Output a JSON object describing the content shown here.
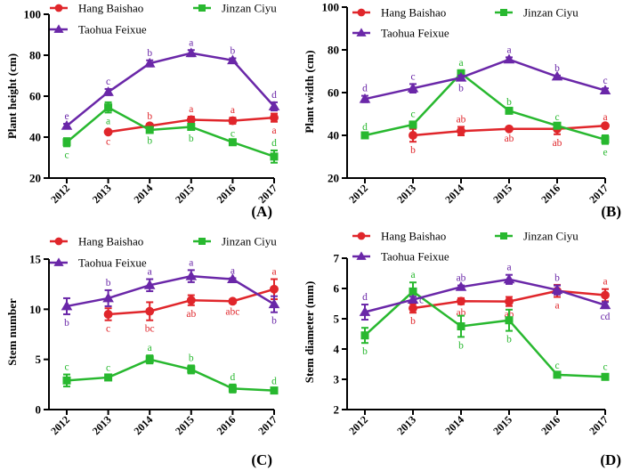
{
  "series_styles": [
    {
      "name": "Hang Baishao",
      "color": "#e0262b",
      "marker": "circle"
    },
    {
      "name": "Jinzan Ciyu",
      "color": "#28b82f",
      "marker": "square"
    },
    {
      "name": "Taohua Feixue",
      "color": "#6a27a8",
      "marker": "triangle"
    }
  ],
  "chart_data": [
    {
      "type": "line",
      "panel": "(A)",
      "ylabel": "Plant height (cm)",
      "categories": [
        "2012",
        "2013",
        "2014",
        "2015",
        "2016",
        "2017"
      ],
      "ylim": [
        20,
        100
      ],
      "yticks": [
        20,
        40,
        60,
        80,
        100
      ],
      "series": [
        {
          "name": "Hang Baishao",
          "x": [
            "2013",
            "2014",
            "2015",
            "2016",
            "2017"
          ],
          "values": [
            42.5,
            45.5,
            48.5,
            48.0,
            49.5
          ],
          "errors": [
            0.5,
            1,
            1.5,
            1.5,
            2
          ],
          "letters": [
            "c",
            "b",
            "a",
            "a",
            "a"
          ],
          "letter_pos": [
            "below",
            "above",
            "above",
            "above",
            "below"
          ]
        },
        {
          "name": "Jinzan Ciyu",
          "x": [
            "2012",
            "2013",
            "2014",
            "2015",
            "2016",
            "2017"
          ],
          "values": [
            37.5,
            54.5,
            43.5,
            45.0,
            37.5,
            30.5
          ],
          "errors": [
            2,
            2.5,
            1,
            1.5,
            0.5,
            3
          ],
          "letters": [
            "c",
            "a",
            "b",
            "b",
            "c",
            "d"
          ],
          "letter_pos": [
            "below",
            "below",
            "below",
            "below",
            "above",
            "above"
          ]
        },
        {
          "name": "Taohua Feixue",
          "x": [
            "2012",
            "2013",
            "2014",
            "2015",
            "2016",
            "2017"
          ],
          "values": [
            45.5,
            62.0,
            76.0,
            81.0,
            77.5,
            55.0
          ],
          "errors": [
            1,
            1.5,
            1.5,
            1.5,
            1,
            2
          ],
          "letters": [
            "e",
            "c",
            "b",
            "a",
            "b",
            "d"
          ],
          "letter_pos": [
            "above",
            "above",
            "above",
            "above",
            "above",
            "above"
          ]
        }
      ]
    },
    {
      "type": "line",
      "panel": "(B)",
      "ylabel": "Plant width (cm)",
      "categories": [
        "2012",
        "2013",
        "2014",
        "2015",
        "2016",
        "2017"
      ],
      "ylim": [
        20,
        100
      ],
      "yticks": [
        20,
        40,
        60,
        80,
        100
      ],
      "series": [
        {
          "name": "Hang Baishao",
          "x": [
            "2013",
            "2014",
            "2015",
            "2016",
            "2017"
          ],
          "values": [
            40.0,
            42.0,
            43.0,
            43.0,
            44.5
          ],
          "errors": [
            3,
            2,
            0.5,
            2.5,
            0.5
          ],
          "letters": [
            "b",
            "ab",
            "ab",
            "ab",
            "a"
          ],
          "letter_pos": [
            "below",
            "above",
            "below",
            "below",
            "above"
          ]
        },
        {
          "name": "Jinzan Ciyu",
          "x": [
            "2012",
            "2013",
            "2014",
            "2015",
            "2016",
            "2017"
          ],
          "values": [
            40.0,
            45.0,
            69.0,
            51.5,
            44.5,
            38.0
          ],
          "errors": [
            0.5,
            1.5,
            1.5,
            0.5,
            0.5,
            2
          ],
          "letters": [
            "d",
            "c",
            "a",
            "b",
            "c",
            "e"
          ],
          "letter_pos": [
            "above",
            "above",
            "above",
            "above",
            "above",
            "below"
          ]
        },
        {
          "name": "Taohua Feixue",
          "x": [
            "2012",
            "2013",
            "2014",
            "2015",
            "2016",
            "2017"
          ],
          "values": [
            57.0,
            62.0,
            67.0,
            75.5,
            67.5,
            61.0
          ],
          "errors": [
            1.5,
            2,
            1,
            1,
            0.5,
            1
          ],
          "letters": [
            "d",
            "c",
            "b",
            "a",
            "b",
            "c"
          ],
          "letter_pos": [
            "above",
            "above",
            "below",
            "above",
            "above",
            "above"
          ]
        }
      ]
    },
    {
      "type": "line",
      "panel": "(C)",
      "ylabel": "Stem number",
      "categories": [
        "2012",
        "2013",
        "2014",
        "2015",
        "2016",
        "2017"
      ],
      "ylim": [
        0,
        15
      ],
      "yticks": [
        0,
        5,
        10,
        15
      ],
      "series": [
        {
          "name": "Hang Baishao",
          "x": [
            "2013",
            "2014",
            "2015",
            "2016",
            "2017"
          ],
          "values": [
            9.5,
            9.8,
            10.9,
            10.8,
            12.0
          ],
          "errors": [
            0.6,
            0.9,
            0.5,
            0.2,
            1
          ],
          "letters": [
            "c",
            "bc",
            "ab",
            "abc",
            "a"
          ],
          "letter_pos": [
            "below",
            "below",
            "below",
            "below",
            "above"
          ]
        },
        {
          "name": "Jinzan Ciyu",
          "x": [
            "2012",
            "2013",
            "2014",
            "2015",
            "2016",
            "2017"
          ],
          "values": [
            2.9,
            3.2,
            5.0,
            4.0,
            2.1,
            1.9
          ],
          "errors": [
            0.6,
            0.2,
            0.4,
            0.4,
            0.4,
            0.2
          ],
          "letters": [
            "c",
            "c",
            "a",
            "b",
            "d",
            "d"
          ],
          "letter_pos": [
            "above",
            "above",
            "above",
            "above",
            "above",
            "above"
          ]
        },
        {
          "name": "Taohua Feixue",
          "x": [
            "2012",
            "2013",
            "2014",
            "2015",
            "2016",
            "2017"
          ],
          "values": [
            10.3,
            11.1,
            12.4,
            13.3,
            13.0,
            10.5
          ],
          "errors": [
            0.8,
            0.8,
            0.6,
            0.6,
            0.1,
            0.8
          ],
          "letters": [
            "b",
            "b",
            "a",
            "a",
            "a",
            "b"
          ],
          "letter_pos": [
            "below",
            "above",
            "above",
            "above",
            "above",
            "below"
          ]
        }
      ]
    },
    {
      "type": "line",
      "panel": "(D)",
      "ylabel": "Stem diameter (mm)",
      "categories": [
        "2012",
        "2013",
        "2014",
        "2015",
        "2016",
        "2017"
      ],
      "ylim": [
        2,
        7
      ],
      "yticks": [
        2,
        3,
        4,
        5,
        6,
        7
      ],
      "series": [
        {
          "name": "Hang Baishao",
          "x": [
            "2013",
            "2014",
            "2015",
            "2016",
            "2017"
          ],
          "values": [
            5.35,
            5.58,
            5.57,
            5.92,
            5.78
          ],
          "errors": [
            0.15,
            0.1,
            0.15,
            0.2,
            0.2
          ],
          "letters": [
            "b",
            "ab",
            "ab",
            "a",
            "a"
          ],
          "letter_pos": [
            "below",
            "below",
            "below",
            "below",
            "above"
          ]
        },
        {
          "name": "Jinzan Ciyu",
          "x": [
            "2012",
            "2013",
            "2014",
            "2015",
            "2016",
            "2017"
          ],
          "values": [
            4.45,
            5.9,
            4.75,
            4.95,
            3.15,
            3.08
          ],
          "errors": [
            0.25,
            0.3,
            0.35,
            0.35,
            0.05,
            0.08
          ],
          "letters": [
            "b",
            "a",
            "b",
            "b",
            "c",
            "c"
          ],
          "letter_pos": [
            "below",
            "above",
            "below",
            "below",
            "above",
            "above"
          ]
        },
        {
          "name": "Taohua Feixue",
          "x": [
            "2012",
            "2013",
            "2014",
            "2015",
            "2016",
            "2017"
          ],
          "values": [
            5.22,
            5.63,
            6.05,
            6.3,
            5.95,
            5.45
          ],
          "errors": [
            0.25,
            0.1,
            0.05,
            0.15,
            0.15,
            0.1
          ],
          "letters": [
            "d",
            "c",
            "ab",
            "a",
            "b",
            "cd"
          ],
          "letter_pos": [
            "above",
            "right",
            "above",
            "above",
            "above",
            "below"
          ]
        }
      ]
    }
  ]
}
